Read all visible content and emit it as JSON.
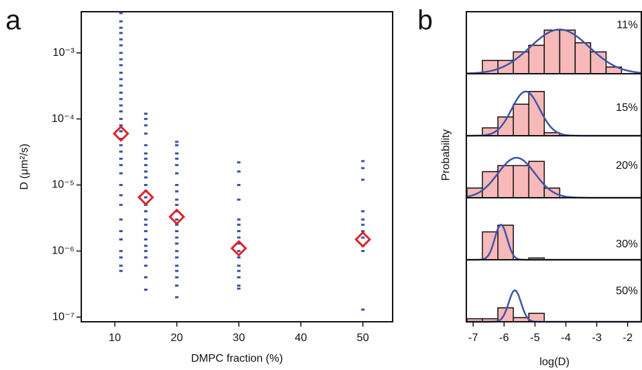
{
  "chart_data": [
    {
      "type": "strip",
      "panel_label": "a",
      "xlabel": "DMPC fraction (%)",
      "ylabel": "D (μm²/s)",
      "xlim": [
        4.6,
        54.8
      ],
      "xticks": [
        10,
        20,
        30,
        40,
        50
      ],
      "ylim": [
        8.5e-08,
        0.0042
      ],
      "log_y": true,
      "yticks": [
        {
          "value": 1e-07,
          "label": "10⁻⁷"
        },
        {
          "value": 1e-06,
          "label": "10⁻⁶"
        },
        {
          "value": 1e-05,
          "label": "10⁻⁵"
        },
        {
          "value": 0.0001,
          "label": "10⁻⁴"
        },
        {
          "value": 0.001,
          "label": "10⁻³"
        }
      ],
      "dot_color": "#3d52a8",
      "mean_color": "#d9262a",
      "dots": [
        {
          "x": 11,
          "values": [
            0.004,
            0.003,
            0.0024,
            0.002,
            0.0016,
            0.0013,
            0.001,
            0.0008,
            0.00065,
            0.0005,
            0.0004,
            0.00032,
            0.00025,
            0.0002,
            0.00016,
            0.00013,
            0.0001,
            8e-05,
            6.5e-05,
            5e-05,
            4e-05,
            3.2e-05,
            2.5e-05,
            2e-05,
            1.5e-05,
            1e-05,
            7e-06,
            5e-06,
            3e-06,
            2e-06,
            1.5e-06,
            1e-06,
            8e-07,
            6e-07,
            5e-07
          ]
        },
        {
          "x": 15,
          "values": [
            0.00012,
            0.0001,
            8e-05,
            6e-05,
            4e-05,
            3e-05,
            2.5e-05,
            2e-05,
            1.6e-05,
            1.3e-05,
            1e-05,
            8e-06,
            6.5e-06,
            5e-06,
            4e-06,
            3e-06,
            2.5e-06,
            2e-06,
            1.5e-06,
            1.2e-06,
            1e-06,
            8e-07,
            6e-07,
            4e-07,
            2.6e-07
          ]
        },
        {
          "x": 20,
          "values": [
            4.5e-05,
            4e-05,
            3e-05,
            2.5e-05,
            2e-05,
            1.5e-05,
            1e-05,
            8e-06,
            6e-06,
            5e-06,
            4e-06,
            3e-06,
            2.5e-06,
            2e-06,
            1.6e-06,
            1.3e-06,
            1e-06,
            8e-07,
            6e-07,
            5e-07,
            4e-07,
            3e-07,
            2e-07
          ]
        },
        {
          "x": 30,
          "values": [
            2.2e-05,
            1.6e-05,
            1e-05,
            6e-06,
            3e-06,
            2.5e-06,
            2e-06,
            1.6e-06,
            1.3e-06,
            1e-06,
            8e-07,
            6e-07,
            5e-07,
            4e-07,
            3e-07,
            2.7e-07
          ]
        },
        {
          "x": 50,
          "values": [
            2.3e-05,
            1.8e-05,
            1.2e-05,
            4e-06,
            3e-06,
            2.5e-06,
            2e-06,
            1.6e-06,
            1.2e-06,
            1e-06,
            1.3e-07
          ]
        }
      ],
      "means": {
        "x": [
          11,
          15,
          20,
          30,
          50
        ],
        "values": [
          6e-05,
          6.5e-06,
          3.3e-06,
          1.1e-06,
          1.5e-06
        ]
      }
    },
    {
      "type": "histogram",
      "panel_label": "b",
      "xlabel": "log(D)",
      "ylabel": "Probability",
      "xlim": [
        -7.22,
        -1.56
      ],
      "xticks": [
        -7,
        -6,
        -5,
        -4,
        -3,
        -2
      ],
      "ylim": [
        0,
        1
      ],
      "bins": [
        -7.2,
        -6.7,
        -6.2,
        -5.7,
        -5.2,
        -4.7,
        -4.2,
        -3.7,
        -3.2,
        -2.7,
        -2.2
      ],
      "bar_color": "#f7b9b9",
      "curve_color": "#3f55a6",
      "panels": [
        {
          "label": "11%",
          "values": [
            0,
            0.22,
            0.22,
            0.36,
            0.47,
            0.72,
            0.72,
            0.51,
            0.36,
            0.11
          ],
          "fit": {
            "mean": -4.2,
            "sd": 0.95,
            "peak": 0.73
          }
        },
        {
          "label": "15%",
          "values": [
            0,
            0.13,
            0.31,
            0.52,
            0.73,
            0.05,
            0,
            0,
            0,
            0
          ],
          "fit": {
            "mean": -5.3,
            "sd": 0.45,
            "peak": 0.73
          }
        },
        {
          "label": "20%",
          "values": [
            0.16,
            0.43,
            0.53,
            0.53,
            0.6,
            0.16,
            0,
            0,
            0,
            0
          ],
          "fit": {
            "mean": -5.6,
            "sd": 0.6,
            "peak": 0.66
          }
        },
        {
          "label": "30%",
          "values": [
            0,
            0.46,
            0.57,
            0,
            0.03,
            0,
            0,
            0,
            0,
            0
          ],
          "fit": {
            "mean": -6.1,
            "sd": 0.2,
            "peak": 0.58
          }
        },
        {
          "label": "50%",
          "values": [
            0.05,
            0.05,
            0.23,
            0.07,
            0.14,
            0,
            0,
            0,
            0,
            0
          ],
          "fit": {
            "mean": -5.65,
            "sd": 0.2,
            "peak": 0.52
          }
        }
      ]
    }
  ]
}
